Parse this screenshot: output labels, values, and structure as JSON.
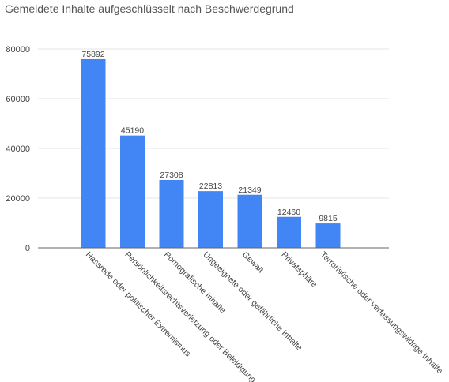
{
  "chart_data": {
    "type": "bar",
    "title": "Gemeldete Inhalte aufgeschlüsselt nach Beschwerdegrund",
    "xlabel": "",
    "ylabel": "",
    "categories": [
      "Hassrede oder politischer Extremismus",
      "Persönlichkeitsrechtsverletzung oder Beleidigung",
      "Pornografische Inhalte",
      "Ungeeignete oder gefährliche Inhalte",
      "Gewalt",
      "Privatsphäre",
      "Terroristische oder verfassungswidrige Inhalte"
    ],
    "values": [
      75892,
      45190,
      27308,
      22813,
      21349,
      12460,
      9815
    ],
    "ylim": [
      0,
      80000
    ],
    "yticks": [
      "0",
      "20000",
      "40000",
      "60000",
      "80000"
    ],
    "grid": true,
    "legend": "none",
    "colors": {
      "bar": "#4285f4",
      "grid": "#e6e6e6",
      "axis": "#666666"
    }
  }
}
